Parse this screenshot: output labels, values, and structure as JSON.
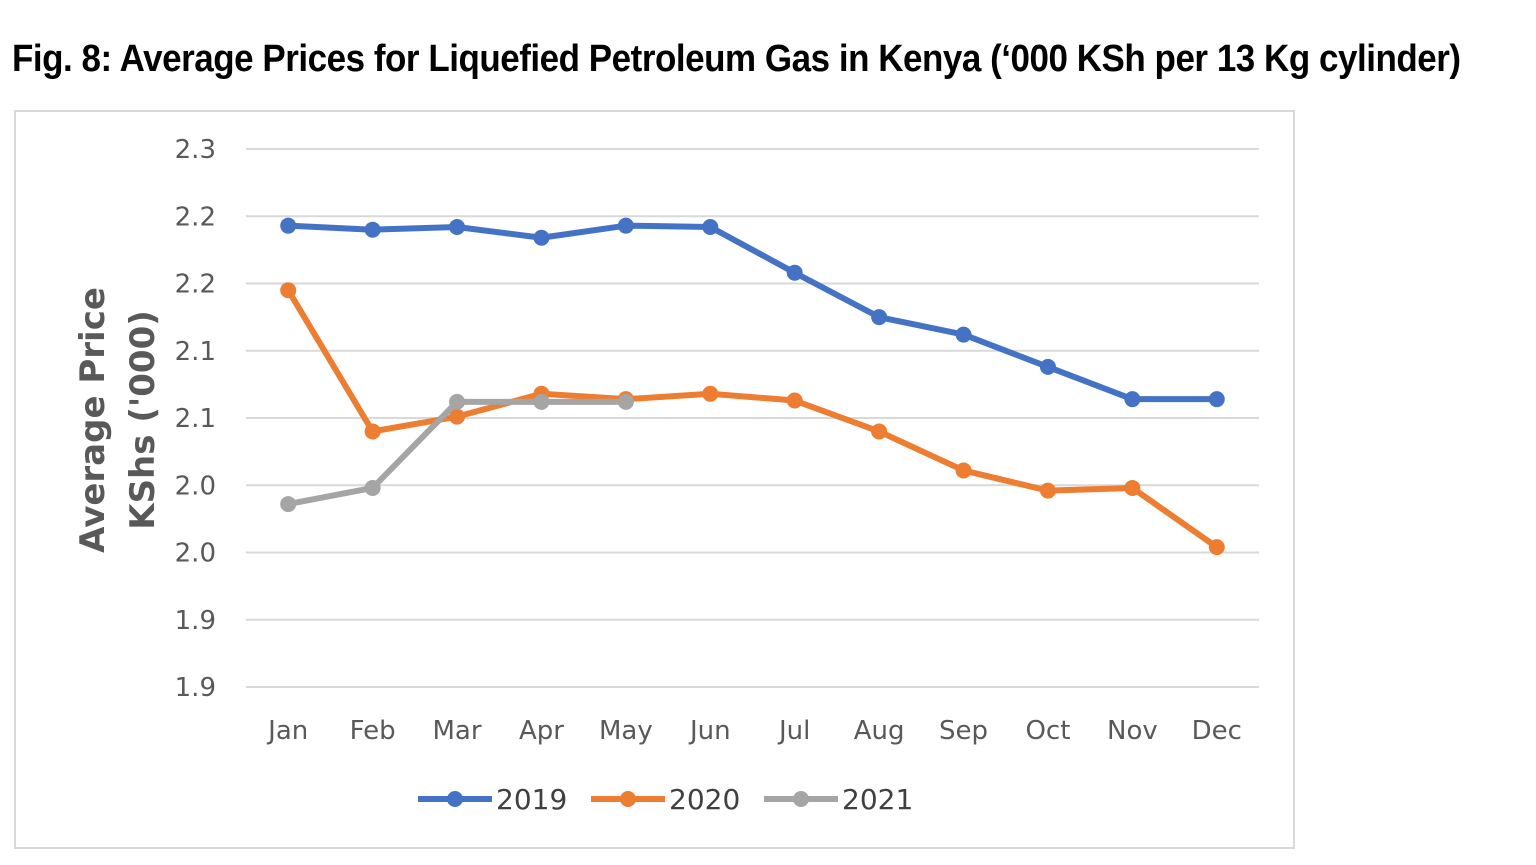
{
  "title": "Fig. 8: Average Prices for Liquefied Petroleum Gas in Kenya (‘000 KSh per 13 Kg cylinder)",
  "chart_data": {
    "type": "line",
    "title": "Fig. 8: Average Prices for Liquefied Petroleum Gas in Kenya (‘000 KSh per 13 Kg cylinder)",
    "xlabel": "",
    "ylabel_lines": [
      "Average Price",
      "KShs ('000)"
    ],
    "categories": [
      "Jan",
      "Feb",
      "Mar",
      "Apr",
      "May",
      "Jun",
      "Jul",
      "Aug",
      "Sep",
      "Oct",
      "Nov",
      "Dec"
    ],
    "y_ticks": [
      1.9,
      1.95,
      2.0,
      2.05,
      2.1,
      2.15,
      2.2,
      2.25,
      2.3
    ],
    "y_tick_labels": [
      "1.9",
      "1.9",
      "2.0",
      "2.0",
      "2.1",
      "2.1",
      "2.2",
      "2.2",
      "2.3"
    ],
    "ylim": [
      1.9,
      2.3
    ],
    "grid": true,
    "legend_position": "bottom",
    "series": [
      {
        "name": "2019",
        "color": "#4472C4",
        "values": [
          2.243,
          2.24,
          2.242,
          2.234,
          2.243,
          2.242,
          2.208,
          2.175,
          2.162,
          2.138,
          2.114,
          2.114
        ]
      },
      {
        "name": "2020",
        "color": "#ED7D31",
        "values": [
          2.195,
          2.09,
          2.101,
          2.118,
          2.114,
          2.118,
          2.113,
          2.09,
          2.061,
          2.046,
          2.048,
          2.004
        ]
      },
      {
        "name": "2021",
        "color": "#A5A5A5",
        "values": [
          2.036,
          2.048,
          2.112,
          2.112,
          2.112,
          null,
          null,
          null,
          null,
          null,
          null,
          null
        ]
      }
    ]
  }
}
